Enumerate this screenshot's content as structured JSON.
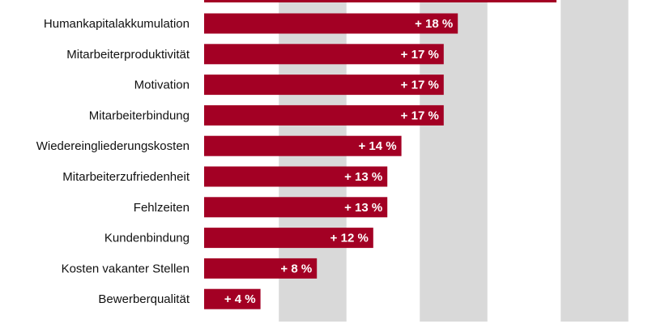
{
  "chart_data": {
    "type": "bar",
    "orientation": "horizontal",
    "categories": [
      "Humankapitalakkumulation",
      "Mitarbeiterproduktivität",
      "Motivation",
      "Mitarbeiterbindung",
      "Wiedereingliederungskosten",
      "Mitarbeiterzufriedenheit",
      "Fehlzeiten",
      "Kundenbindung",
      "Kosten vakanter Stellen",
      "Bewerberqualität"
    ],
    "values": [
      18,
      17,
      17,
      17,
      14,
      13,
      13,
      12,
      8,
      4
    ],
    "value_labels": [
      "+ 18 %",
      "+ 17 %",
      "+ 17 %",
      "+ 17 %",
      "+ 14 %",
      "+ 13 %",
      "+ 13 %",
      "+ 12 %",
      "+ 8 %",
      "+ 4 %"
    ],
    "partial_top_bar_value": 25,
    "xlim": [
      0,
      30
    ],
    "grid_bands": true
  },
  "colors": {
    "bar": "#a30024",
    "band": "#d9d9d9",
    "label": "#111111",
    "value_text": "#ffffff"
  }
}
